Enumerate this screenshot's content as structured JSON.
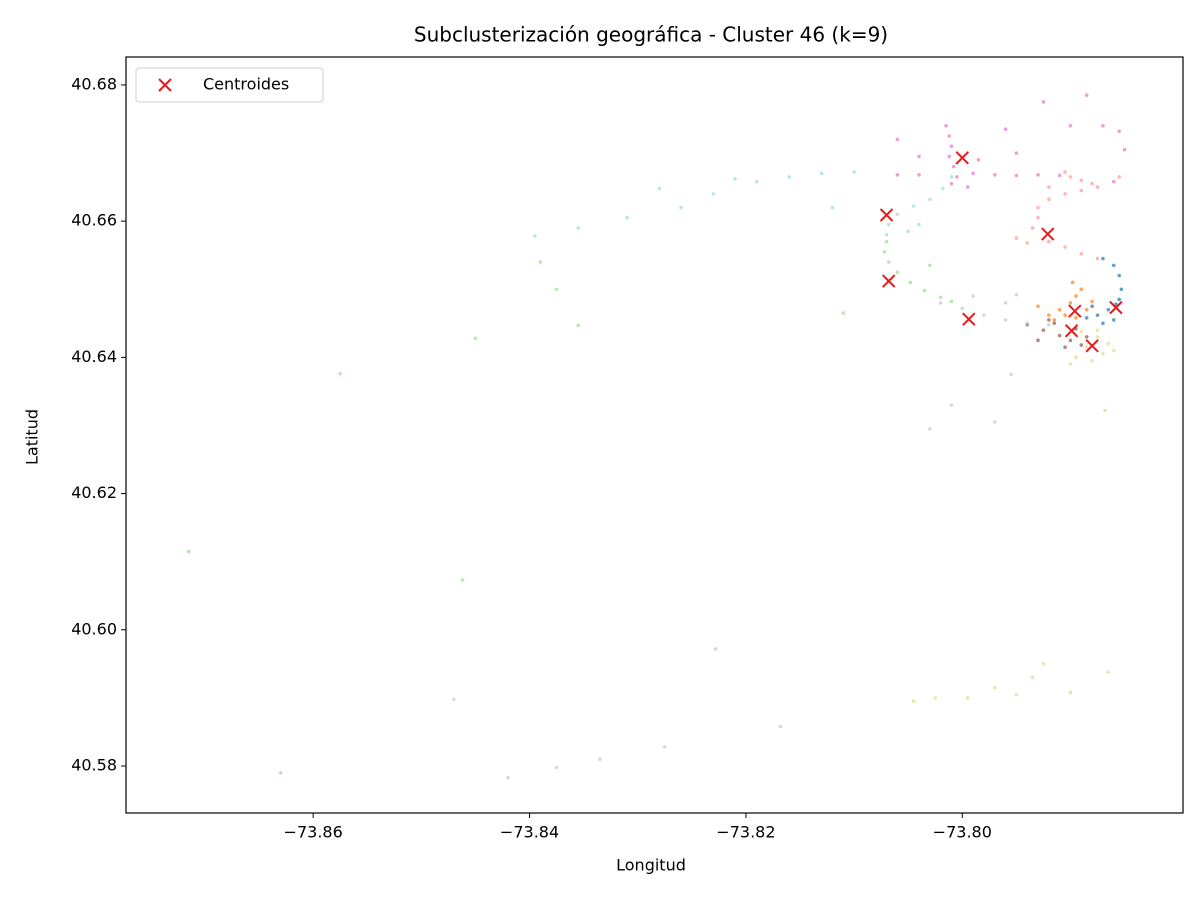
{
  "chart_data": {
    "type": "scatter",
    "title": "Subclusterización geográfica - Cluster 46 (k=9)",
    "x_label": "Longitud",
    "y_label": "Latitud",
    "xlim": [
      -73.8773,
      -73.7796
    ],
    "ylim": [
      40.5731,
      40.6841
    ],
    "xticks": [
      {
        "value": -73.86,
        "label": "−73.86"
      },
      {
        "value": -73.84,
        "label": "−73.84"
      },
      {
        "value": -73.82,
        "label": "−73.82"
      },
      {
        "value": -73.8,
        "label": "−73.80"
      }
    ],
    "yticks": [
      40.58,
      {
        "value": 40.6,
        "label": "40.60"
      },
      40.62,
      40.64,
      40.66,
      40.68
    ],
    "legend": "upper left",
    "series": [
      {
        "color": "#1f77b4",
        "x": [
          -73.787,
          -73.786,
          -73.7855,
          -73.7853,
          -73.7855,
          -73.7865,
          -73.7875,
          -73.786,
          -73.787,
          -73.788,
          -73.7858,
          -73.7885
        ],
        "values": [
          40.6545,
          40.6535,
          40.652,
          40.65,
          40.6485,
          40.647,
          40.6462,
          40.6455,
          40.645,
          40.6475,
          40.6478,
          40.6458
        ]
      },
      {
        "color": "#ff7f0e",
        "x": [
          -73.792,
          -73.791,
          -73.79,
          -73.7895,
          -73.789,
          -73.7905,
          -73.7885,
          -73.788,
          -73.7915,
          -73.7895,
          -73.7898,
          -73.793
        ],
        "values": [
          40.6462,
          40.647,
          40.648,
          40.649,
          40.65,
          40.6462,
          40.647,
          40.6482,
          40.6455,
          40.6458,
          40.651,
          40.6475
        ]
      },
      {
        "color": "#8c564b",
        "x": [
          -73.794,
          -73.7925,
          -73.791,
          -73.79,
          -73.789,
          -73.7915,
          -73.7895,
          -73.793,
          -73.7905,
          -73.7885,
          -73.792
        ],
        "values": [
          40.6448,
          40.644,
          40.6432,
          40.6425,
          40.6418,
          40.645,
          40.6442,
          40.6425,
          40.6415,
          40.643,
          40.6455
        ]
      },
      {
        "color": "#dbdb8d",
        "x": [
          -73.789,
          -73.7875,
          -73.7865,
          -73.787,
          -73.788,
          -73.7895,
          -73.786,
          -73.7885,
          -73.79,
          -73.7875,
          -73.7868,
          -73.79,
          -73.7865,
          -73.7925,
          -73.7935,
          -73.795,
          -73.797,
          -73.8045,
          -73.7995,
          -73.8025
        ],
        "values": [
          40.6438,
          40.643,
          40.642,
          40.6405,
          40.6395,
          40.64,
          40.641,
          40.6415,
          40.639,
          40.644,
          40.6322,
          40.5908,
          40.5938,
          40.595,
          40.593,
          40.5905,
          40.5915,
          40.5895,
          40.59,
          40.59
        ]
      },
      {
        "color": "#c7c7c7",
        "x": [
          -73.802,
          -73.8,
          -73.798,
          -73.796,
          -73.794,
          -73.792,
          -73.799,
          -73.796,
          -73.795,
          -73.7955,
          -73.801,
          -73.803,
          -73.8228,
          -73.8168,
          -73.8275,
          -73.8335,
          -73.847,
          -73.842,
          -73.8375,
          -73.797
        ],
        "values": [
          40.648,
          40.6472,
          40.6462,
          40.6455,
          40.645,
          40.6448,
          40.649,
          40.648,
          40.6492,
          40.6375,
          40.633,
          40.6295,
          40.5972,
          40.5858,
          40.5828,
          40.581,
          40.5898,
          40.5783,
          40.5798,
          40.6305
        ]
      },
      {
        "color": "#98df8a",
        "x": [
          -73.807,
          -73.8072,
          -73.8068,
          -73.806,
          -73.8048,
          -73.8035,
          -73.802,
          -73.801,
          -73.803,
          -73.845,
          -73.8375,
          -73.839,
          -73.8715,
          -73.8462,
          -73.863,
          -73.8575,
          -73.8355,
          -73.811
        ],
        "values": [
          40.657,
          40.6555,
          40.654,
          40.6525,
          40.651,
          40.6498,
          40.6488,
          40.6482,
          40.6535,
          40.6428,
          40.65,
          40.654,
          40.6115,
          40.6073,
          40.579,
          40.6376,
          40.6447,
          40.6465
        ]
      },
      {
        "color": "#9edae5",
        "x": [
          -73.807,
          -73.8068,
          -73.806,
          -73.8045,
          -73.803,
          -73.8018,
          -73.801,
          -73.8005,
          -73.81,
          -73.813,
          -73.816,
          -73.819,
          -73.821,
          -73.823,
          -73.826,
          -73.828,
          -73.831,
          -73.8355,
          -73.8395,
          -73.812,
          -73.805,
          -73.804
        ],
        "values": [
          40.658,
          40.6595,
          40.661,
          40.6622,
          40.6632,
          40.6648,
          40.6665,
          40.6685,
          40.6672,
          40.667,
          40.6665,
          40.6658,
          40.6662,
          40.664,
          40.662,
          40.6648,
          40.6605,
          40.659,
          40.6578,
          40.662,
          40.6585,
          40.6595
        ]
      },
      {
        "color": "#e377c2",
        "x": [
          -73.8015,
          -73.8012,
          -73.801,
          -73.8012,
          -73.8008,
          -73.8005,
          -73.801,
          -73.806,
          -73.804,
          -73.799,
          -73.797,
          -73.795,
          -73.793,
          -73.791,
          -73.7985,
          -73.795,
          -73.7995,
          -73.796,
          -73.7925,
          -73.79,
          -73.7885,
          -73.787,
          -73.7855,
          -73.785,
          -73.786,
          -73.806,
          -73.804
        ],
        "values": [
          40.674,
          40.6725,
          40.671,
          40.6695,
          40.668,
          40.6665,
          40.6655,
          40.6668,
          40.6668,
          40.667,
          40.6668,
          40.6667,
          40.6668,
          40.6667,
          40.669,
          40.67,
          40.665,
          40.6735,
          40.6775,
          40.674,
          40.6785,
          40.674,
          40.6732,
          40.6705,
          40.6658,
          40.672,
          40.6695
        ]
      },
      {
        "color": "#ff9896",
        "x": [
          -73.79,
          -73.789,
          -73.788,
          -73.7875,
          -73.789,
          -73.7905,
          -73.792,
          -73.793,
          -73.793,
          -73.7935,
          -73.795,
          -73.794,
          -73.792,
          -73.7905,
          -73.789,
          -73.7875,
          -73.792,
          -73.7905,
          -73.7855
        ],
        "values": [
          40.6665,
          40.666,
          40.6655,
          40.665,
          40.6645,
          40.664,
          40.6632,
          40.662,
          40.6605,
          40.659,
          40.6575,
          40.6568,
          40.657,
          40.6562,
          40.6552,
          40.6545,
          40.665,
          40.6672,
          40.6665
        ]
      },
      {
        "name": "Centroides",
        "color": "#e41a1c",
        "marker": "x",
        "x": [
          -73.8,
          -73.807,
          -73.8068,
          -73.7994,
          -73.7921,
          -73.7896,
          -73.7899,
          -73.788,
          -73.7858
        ],
        "values": [
          40.6693,
          40.6609,
          40.6512,
          40.6456,
          40.6581,
          40.6468,
          40.6439,
          40.6417,
          40.6473
        ]
      }
    ]
  }
}
